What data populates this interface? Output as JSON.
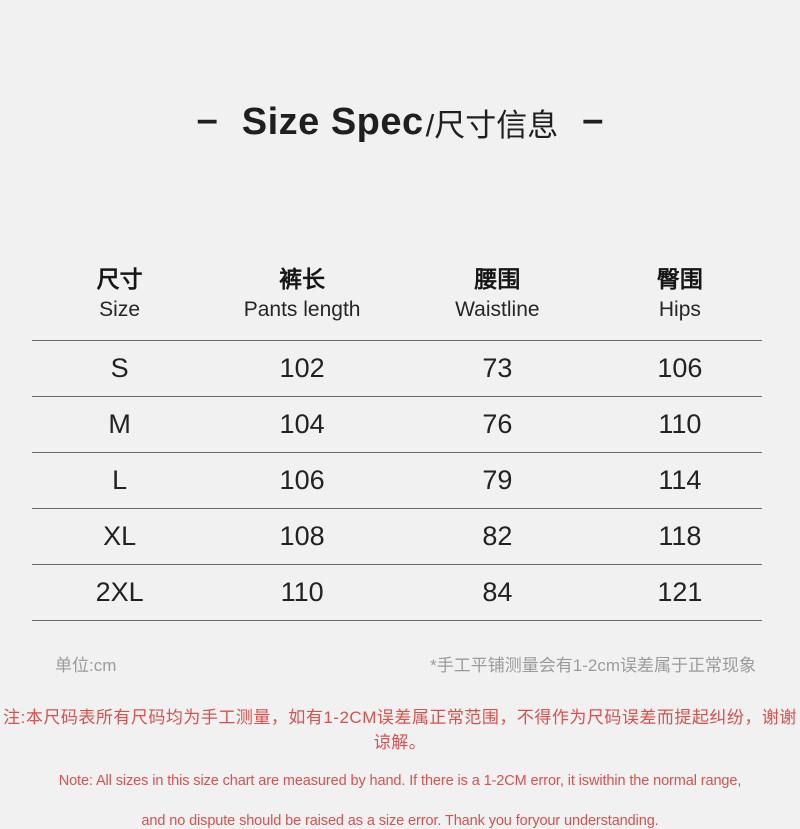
{
  "title": {
    "dash": "–",
    "en": "Size Spec",
    "zh": "/尺寸信息"
  },
  "table": {
    "columns": [
      {
        "zh": "尺寸",
        "en": "Size"
      },
      {
        "zh": "裤长",
        "en": "Pants length"
      },
      {
        "zh": "腰围",
        "en": "Waistline"
      },
      {
        "zh": "臀围",
        "en": "Hips"
      }
    ],
    "rows": [
      {
        "size": "S",
        "pants_length": "102",
        "waistline": "73",
        "hips": "106"
      },
      {
        "size": "M",
        "pants_length": "104",
        "waistline": "76",
        "hips": "110"
      },
      {
        "size": "L",
        "pants_length": "106",
        "waistline": "79",
        "hips": "114"
      },
      {
        "size": "XL",
        "pants_length": "108",
        "waistline": "82",
        "hips": "118"
      },
      {
        "size": "2XL",
        "pants_length": "110",
        "waistline": "84",
        "hips": "121"
      }
    ]
  },
  "footer": {
    "unit": "单位:cm",
    "measure_note": "*手工平铺测量会有1-2cm误差属于正常现象"
  },
  "notes": {
    "zh": "注:本尺码表所有尺码均为手工测量，如有1-2CM误差属正常范围，不得作为尺码误差而提起纠纷，谢谢谅解。",
    "en_line1": "Note: All sizes in this size chart are measured by hand. If there is a 1-2CM error, it iswithin the normal range,",
    "en_line2": "and no dispute should be raised as a size error. Thank you foryour understanding."
  },
  "colors": {
    "background": "#f1f1f2",
    "text": "#1f1f1f",
    "muted_gray": "#9b9b9b",
    "note_red": "#d9514d",
    "line": "#686868"
  },
  "chart_data": {
    "type": "table",
    "title": "Size Spec/尺寸信息",
    "unit": "cm",
    "columns": [
      "尺寸 Size",
      "裤长 Pants length",
      "腰围 Waistline",
      "臀围 Hips"
    ],
    "rows": [
      [
        "S",
        102,
        73,
        106
      ],
      [
        "M",
        104,
        76,
        110
      ],
      [
        "L",
        106,
        79,
        114
      ],
      [
        "XL",
        108,
        82,
        118
      ],
      [
        "2XL",
        110,
        84,
        121
      ]
    ]
  }
}
